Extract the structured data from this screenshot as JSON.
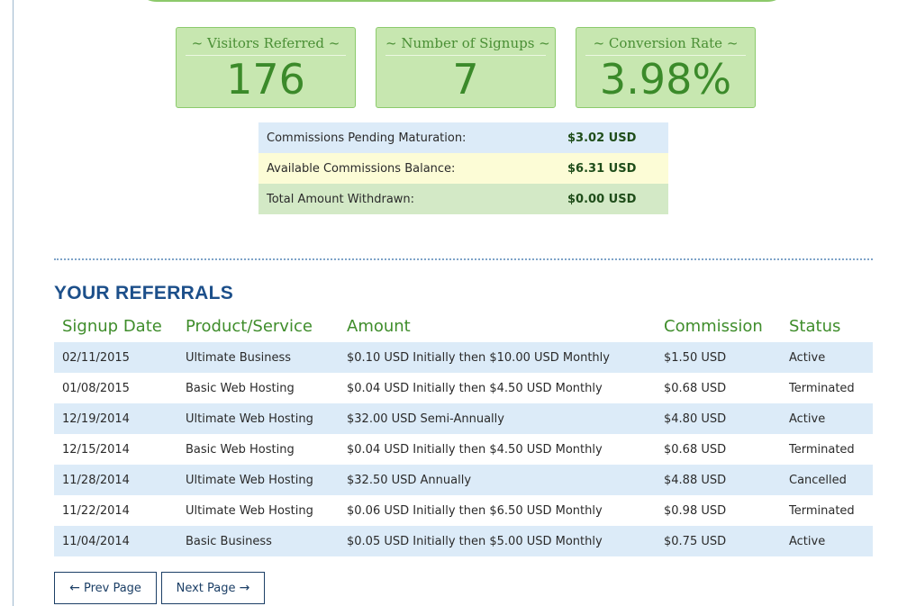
{
  "stats": [
    {
      "label": "~ Visitors Referred ~",
      "value": "176"
    },
    {
      "label": "~ Number of Signups ~",
      "value": "7"
    },
    {
      "label": "~ Conversion Rate ~",
      "value": "3.98%"
    }
  ],
  "summary": [
    {
      "label": "Commissions Pending Maturation:",
      "amount": "$3.02 USD"
    },
    {
      "label": "Available Commissions Balance:",
      "amount": "$6.31 USD"
    },
    {
      "label": "Total Amount Withdrawn:",
      "amount": "$0.00 USD"
    }
  ],
  "referrals": {
    "title": "YOUR REFERRALS",
    "columns": [
      "Signup Date",
      "Product/Service",
      "Amount",
      "Commission",
      "Status"
    ],
    "rows": [
      [
        "02/11/2015",
        "Ultimate Business",
        "$0.10 USD Initially then $10.00 USD Monthly",
        "$1.50 USD",
        "Active"
      ],
      [
        "01/08/2015",
        "Basic Web Hosting",
        "$0.04 USD Initially then $4.50 USD Monthly",
        "$0.68 USD",
        "Terminated"
      ],
      [
        "12/19/2014",
        "Ultimate Web Hosting",
        "$32.00 USD Semi-Annually",
        "$4.80 USD",
        "Active"
      ],
      [
        "12/15/2014",
        "Basic Web Hosting",
        "$0.04 USD Initially then $4.50 USD Monthly",
        "$0.68 USD",
        "Terminated"
      ],
      [
        "11/28/2014",
        "Ultimate Web Hosting",
        "$32.50 USD Annually",
        "$4.88 USD",
        "Cancelled"
      ],
      [
        "11/22/2014",
        "Ultimate Web Hosting",
        "$0.06 USD Initially then $6.50 USD Monthly",
        "$0.98 USD",
        "Terminated"
      ],
      [
        "11/04/2014",
        "Basic Business",
        "$0.05 USD Initially then $5.00 USD Monthly",
        "$0.75 USD",
        "Active"
      ]
    ]
  },
  "pagination": {
    "prev_arrow": "←",
    "prev_label": "Prev Page",
    "next_label": "Next Page",
    "next_arrow": "→"
  },
  "colors": {
    "accent_green": "#3f8d2b",
    "title_blue": "#1c4f8a",
    "row_blue": "#dcebf8"
  }
}
